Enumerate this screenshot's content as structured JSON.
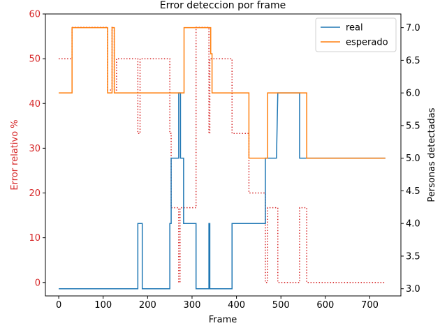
{
  "chart_data": {
    "type": "line",
    "title": "Error deteccion por frame",
    "xlabel": "Frame",
    "ylabel_left": "Error relativo %",
    "ylabel_right": "Personas detectadas",
    "xlim": [
      -30,
      770
    ],
    "ylim_left": [
      -3,
      60
    ],
    "ylim_right": [
      2.89,
      7.21
    ],
    "x_ticks": [
      0,
      100,
      200,
      300,
      400,
      500,
      600,
      700
    ],
    "y_ticks_left": [
      0,
      10,
      20,
      30,
      40,
      50,
      60
    ],
    "y_ticks_right": [
      3.0,
      3.5,
      4.0,
      4.5,
      5.0,
      5.5,
      6.0,
      6.5,
      7.0
    ],
    "grid": false,
    "legend_position": "top-right",
    "colors": {
      "real": "#1f77b4",
      "esperado": "#ff7f0e",
      "error": "#d62728",
      "left_axis": "#d62728"
    },
    "series": [
      {
        "name": "real",
        "axis": "right",
        "style": "solid",
        "color": "#1f77b4",
        "x": [
          0,
          178,
          178,
          188,
          188,
          250,
          250,
          253,
          253,
          270,
          270,
          274,
          274,
          281,
          281,
          309,
          309,
          338,
          338,
          340,
          340,
          343,
          343,
          390,
          390,
          465,
          465,
          490,
          490,
          493,
          493,
          542,
          542,
          554,
          554,
          735
        ],
        "y": [
          3,
          3,
          4,
          4,
          3,
          3,
          4,
          4,
          5,
          5,
          6,
          6,
          5,
          5,
          4,
          4,
          3,
          3,
          4,
          4,
          3,
          3,
          3,
          3,
          4,
          4,
          5,
          5,
          5,
          6,
          6,
          6,
          5,
          5,
          5,
          5
        ]
      },
      {
        "name": "esperado",
        "axis": "right",
        "style": "solid",
        "color": "#ff7f0e",
        "x": [
          0,
          30,
          30,
          110,
          110,
          120,
          120,
          125,
          125,
          130,
          130,
          282,
          282,
          342,
          342,
          345,
          345,
          428,
          428,
          470,
          470,
          558,
          558,
          735
        ],
        "y": [
          6,
          6,
          7,
          7,
          6,
          6,
          7,
          7,
          6,
          6,
          6,
          6,
          7,
          7,
          6.6,
          6.6,
          6,
          6,
          5,
          5,
          6,
          6,
          5,
          5
        ]
      },
      {
        "name": "",
        "axis": "left",
        "style": "dotted",
        "color": "#d62728",
        "x": [
          0,
          30,
          30,
          110,
          110,
          120,
          120,
          125,
          125,
          130,
          130,
          178,
          178,
          183,
          183,
          188,
          188,
          250,
          250,
          253,
          253,
          270,
          270,
          273,
          273,
          276,
          276,
          309,
          309,
          311,
          311,
          338,
          338,
          340,
          340,
          390,
          390,
          428,
          428,
          465,
          465,
          470,
          470,
          493,
          493,
          542,
          542,
          554,
          554,
          558,
          558,
          735
        ],
        "y": [
          50,
          50,
          57,
          57,
          43,
          43,
          57,
          57,
          43,
          43,
          50,
          50,
          33.3,
          33.3,
          50,
          50,
          50,
          50,
          33.3,
          33.3,
          16.7,
          16.7,
          0,
          0,
          16.7,
          16.7,
          16.7,
          16.7,
          57,
          57,
          57,
          57,
          33.3,
          33.3,
          50,
          50,
          33.3,
          33.3,
          20,
          20,
          0,
          0,
          16.7,
          16.7,
          0,
          0,
          16.7,
          16.7,
          16.7,
          16.7,
          0,
          0
        ]
      }
    ]
  }
}
